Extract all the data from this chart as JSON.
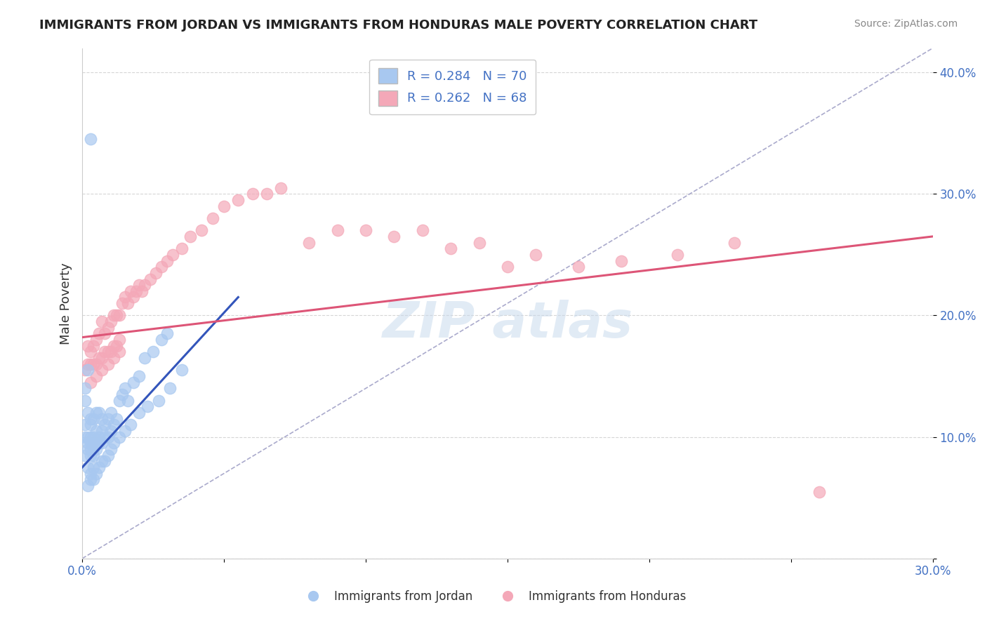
{
  "title": "IMMIGRANTS FROM JORDAN VS IMMIGRANTS FROM HONDURAS MALE POVERTY CORRELATION CHART",
  "source": "Source: ZipAtlas.com",
  "ylabel": "Male Poverty",
  "xlim": [
    0.0,
    0.3
  ],
  "ylim": [
    0.0,
    0.42
  ],
  "jordan_R": 0.284,
  "jordan_N": 70,
  "honduras_R": 0.262,
  "honduras_N": 68,
  "jordan_color": "#a8c8f0",
  "honduras_color": "#f4a8b8",
  "jordan_line_color": "#3355bb",
  "honduras_line_color": "#dd5577",
  "diag_line_color": "#aaaacc",
  "legend_jordan_label": "Immigrants from Jordan",
  "legend_honduras_label": "Immigrants from Honduras",
  "background_color": "#ffffff",
  "jordan_x": [
    0.001,
    0.001,
    0.001,
    0.002,
    0.002,
    0.002,
    0.002,
    0.002,
    0.003,
    0.003,
    0.003,
    0.003,
    0.003,
    0.003,
    0.004,
    0.004,
    0.004,
    0.004,
    0.005,
    0.005,
    0.005,
    0.005,
    0.006,
    0.006,
    0.006,
    0.007,
    0.007,
    0.007,
    0.008,
    0.008,
    0.009,
    0.009,
    0.01,
    0.01,
    0.011,
    0.012,
    0.013,
    0.014,
    0.015,
    0.016,
    0.018,
    0.02,
    0.022,
    0.025,
    0.028,
    0.03,
    0.002,
    0.003,
    0.003,
    0.004,
    0.004,
    0.005,
    0.006,
    0.007,
    0.008,
    0.009,
    0.01,
    0.011,
    0.013,
    0.015,
    0.017,
    0.02,
    0.023,
    0.027,
    0.031,
    0.035,
    0.003,
    0.001,
    0.001,
    0.002
  ],
  "jordan_y": [
    0.085,
    0.1,
    0.11,
    0.075,
    0.09,
    0.095,
    0.1,
    0.12,
    0.085,
    0.09,
    0.095,
    0.1,
    0.11,
    0.115,
    0.085,
    0.09,
    0.1,
    0.115,
    0.09,
    0.095,
    0.105,
    0.12,
    0.095,
    0.1,
    0.12,
    0.095,
    0.105,
    0.115,
    0.1,
    0.11,
    0.1,
    0.115,
    0.105,
    0.12,
    0.11,
    0.115,
    0.13,
    0.135,
    0.14,
    0.13,
    0.145,
    0.15,
    0.165,
    0.17,
    0.18,
    0.185,
    0.06,
    0.065,
    0.07,
    0.065,
    0.075,
    0.07,
    0.075,
    0.08,
    0.08,
    0.085,
    0.09,
    0.095,
    0.1,
    0.105,
    0.11,
    0.12,
    0.125,
    0.13,
    0.14,
    0.155,
    0.345,
    0.13,
    0.14,
    0.155
  ],
  "honduras_x": [
    0.001,
    0.002,
    0.002,
    0.003,
    0.003,
    0.004,
    0.004,
    0.005,
    0.005,
    0.006,
    0.006,
    0.007,
    0.007,
    0.008,
    0.008,
    0.009,
    0.009,
    0.01,
    0.01,
    0.011,
    0.011,
    0.012,
    0.012,
    0.013,
    0.013,
    0.014,
    0.015,
    0.016,
    0.017,
    0.018,
    0.019,
    0.02,
    0.021,
    0.022,
    0.024,
    0.026,
    0.028,
    0.03,
    0.032,
    0.035,
    0.038,
    0.042,
    0.046,
    0.05,
    0.055,
    0.06,
    0.065,
    0.07,
    0.08,
    0.09,
    0.1,
    0.11,
    0.12,
    0.13,
    0.14,
    0.15,
    0.16,
    0.175,
    0.19,
    0.21,
    0.23,
    0.003,
    0.005,
    0.007,
    0.009,
    0.011,
    0.013,
    0.26
  ],
  "honduras_y": [
    0.155,
    0.16,
    0.175,
    0.16,
    0.17,
    0.16,
    0.175,
    0.16,
    0.18,
    0.165,
    0.185,
    0.165,
    0.195,
    0.17,
    0.185,
    0.17,
    0.19,
    0.17,
    0.195,
    0.175,
    0.2,
    0.175,
    0.2,
    0.18,
    0.2,
    0.21,
    0.215,
    0.21,
    0.22,
    0.215,
    0.22,
    0.225,
    0.22,
    0.225,
    0.23,
    0.235,
    0.24,
    0.245,
    0.25,
    0.255,
    0.265,
    0.27,
    0.28,
    0.29,
    0.295,
    0.3,
    0.3,
    0.305,
    0.26,
    0.27,
    0.27,
    0.265,
    0.27,
    0.255,
    0.26,
    0.24,
    0.25,
    0.24,
    0.245,
    0.25,
    0.26,
    0.145,
    0.15,
    0.155,
    0.16,
    0.165,
    0.17,
    0.055
  ],
  "jordan_line_x": [
    0.0,
    0.055
  ],
  "jordan_line_y": [
    0.075,
    0.215
  ],
  "honduras_line_x": [
    0.0,
    0.3
  ],
  "honduras_line_y": [
    0.182,
    0.265
  ]
}
